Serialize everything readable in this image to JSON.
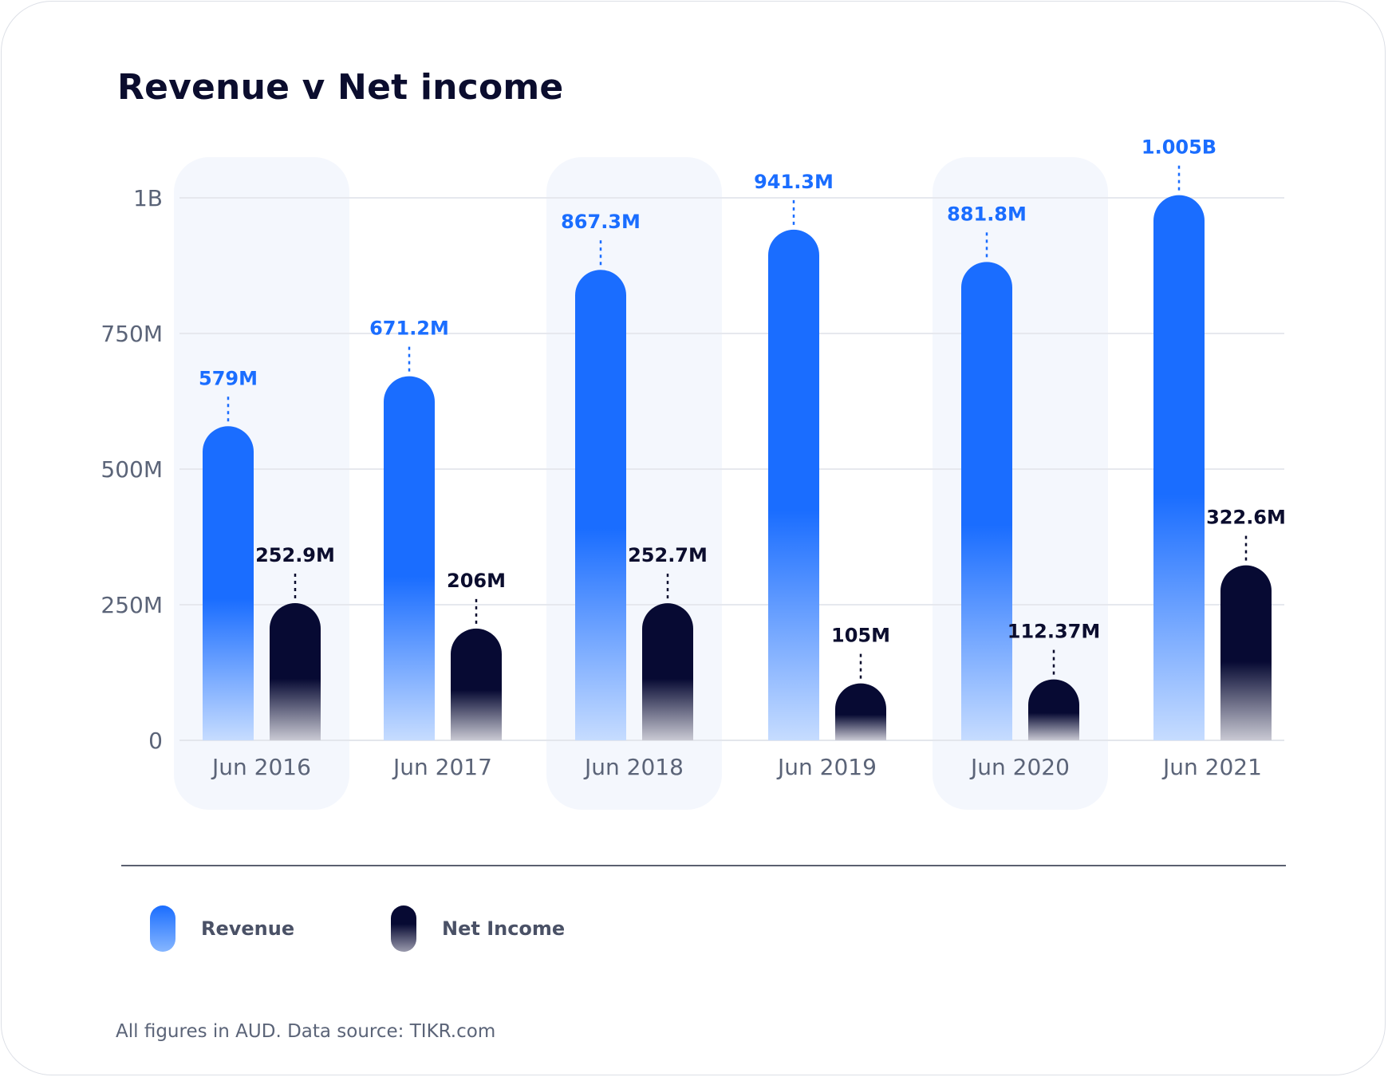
{
  "chart_data": {
    "type": "bar",
    "title": "Revenue v Net income",
    "categories": [
      "Jun 2016",
      "Jun 2017",
      "Jun 2018",
      "Jun 2019",
      "Jun 2020",
      "Jun 2021"
    ],
    "series": [
      {
        "name": "Revenue",
        "values": [
          579,
          671.2,
          867.3,
          941.3,
          881.8,
          1005
        ],
        "labels": [
          "579M",
          "671.2M",
          "867.3M",
          "941.3M",
          "881.8M",
          "1.005B"
        ]
      },
      {
        "name": "Net Income",
        "values": [
          252.9,
          206,
          252.7,
          105,
          112.37,
          322.6
        ],
        "labels": [
          "252.9M",
          "206M",
          "252.7M",
          "105M",
          "112.37M",
          "322.6M"
        ]
      }
    ],
    "unit": "M",
    "ylim": [
      0,
      1000
    ],
    "yticks": [
      {
        "value": 0,
        "label": "0"
      },
      {
        "value": 250,
        "label": "250M"
      },
      {
        "value": 500,
        "label": "500M"
      },
      {
        "value": 750,
        "label": "750M"
      },
      {
        "value": 1000,
        "label": "1B"
      }
    ],
    "grid": true,
    "legend_position": "bottom-left",
    "colors": {
      "Revenue": "#1a6dff",
      "Net Income": "#070a33",
      "category_highlight": "#f4f7fd"
    }
  },
  "footnote": "All figures in AUD. Data source: TIKR.com"
}
